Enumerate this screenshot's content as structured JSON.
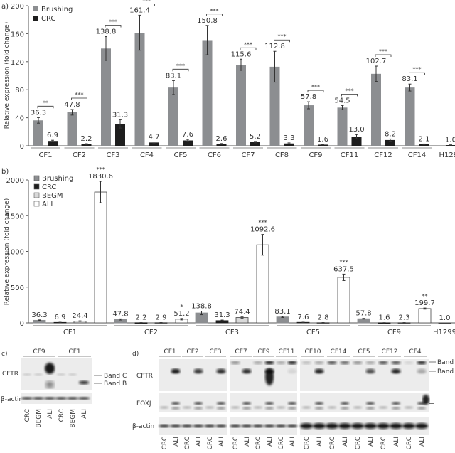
{
  "chart_data": [
    {
      "panel_label": "a)",
      "type": "bar",
      "ylabel": "Relative expression (fold change)",
      "ylim": [
        0,
        200
      ],
      "yticks": [
        0,
        40,
        80,
        120,
        160,
        200
      ],
      "legend_position": "top-left",
      "grid": false,
      "categories": [
        "CF1",
        "CF2",
        "CF3",
        "CF4",
        "CF5",
        "CF6",
        "CF7",
        "CF8",
        "CF9",
        "CF11",
        "CF12",
        "CF14",
        "H1299"
      ],
      "series": [
        {
          "name": "Brushing",
          "color": "#8c8e91",
          "values": [
            36.3,
            47.8,
            138.8,
            161.4,
            83.1,
            150.8,
            115.6,
            112.8,
            57.8,
            54.5,
            102.7,
            83.1,
            null
          ],
          "labels": [
            "36.3",
            "47.8",
            "138.8",
            "161.4",
            "83.1",
            "150.8",
            "115.6",
            "112.8",
            "57.8",
            "54.5",
            "102.7",
            "83.1",
            ""
          ],
          "errors": [
            4,
            4,
            17,
            25,
            10,
            21,
            8,
            22,
            5,
            3,
            11,
            5,
            null
          ]
        },
        {
          "name": "CRC",
          "color": "#1e1e1e",
          "values": [
            6.9,
            2.2,
            31.3,
            4.7,
            7.6,
            2.6,
            5.2,
            3.3,
            1.6,
            13.0,
            8.2,
            2.1,
            1.0
          ],
          "labels": [
            "6.9",
            "2.2",
            "31.3",
            "4.7",
            "7.6",
            "2.6",
            "5.2",
            "3.3",
            "1.6",
            "13.0",
            "8.2",
            "2.1",
            "1.0"
          ],
          "errors": [
            1,
            0.8,
            6,
            0.8,
            1.5,
            0.6,
            1,
            0.8,
            0.5,
            3,
            1.5,
            0.5,
            0.3
          ]
        }
      ],
      "significance": [
        "**",
        "***",
        "***",
        "***",
        "***",
        "***",
        "***",
        "***",
        "***",
        "***",
        "***",
        "***",
        ""
      ]
    },
    {
      "panel_label": "b)",
      "type": "bar",
      "ylabel": "Relative expression (fold change)",
      "ylim": [
        0,
        2000
      ],
      "yticks": [
        0,
        500,
        1000,
        1500,
        2000
      ],
      "legend_position": "top-left",
      "grid": false,
      "categories": [
        "CF1",
        "CF2",
        "CF3",
        "CF5",
        "CF9",
        "H1299"
      ],
      "series": [
        {
          "name": "Brushing",
          "color": "#8c8e91",
          "values": [
            36.3,
            47.8,
            138.8,
            83.1,
            57.8,
            null
          ],
          "labels": [
            "36.3",
            "47.8",
            "138.8",
            "83.1",
            "57.8",
            ""
          ],
          "errors": [
            5,
            8,
            25,
            8,
            5,
            null
          ]
        },
        {
          "name": "CRC",
          "color": "#1e1e1e",
          "values": [
            6.9,
            2.2,
            31.3,
            7.6,
            1.6,
            null
          ],
          "labels": [
            "6.9",
            "2.2",
            "31.3",
            "7.6",
            "1.6",
            ""
          ],
          "errors": [
            2,
            1,
            8,
            2,
            1,
            null
          ]
        },
        {
          "name": "BEGM",
          "color": "#d9d9d9",
          "values": [
            24.4,
            2.9,
            74.4,
            2.8,
            2.3,
            null
          ],
          "labels": [
            "24.4",
            "2.9",
            "74.4",
            "2.8",
            "2.3",
            ""
          ],
          "errors": [
            4,
            1,
            8,
            1,
            1,
            null
          ]
        },
        {
          "name": "ALI",
          "color": "#ffffff",
          "values": [
            1830.6,
            51.2,
            1092.6,
            637.5,
            199.7,
            1.0
          ],
          "labels": [
            "1830.6",
            "51.2",
            "1092.6",
            "637.5",
            "199.7",
            "1.0"
          ],
          "errors": [
            150,
            10,
            145,
            45,
            8,
            null
          ],
          "significance": [
            "***",
            "*",
            "***",
            "***",
            "**",
            ""
          ]
        }
      ]
    }
  ],
  "panel_c": {
    "label": "c)",
    "groups": [
      "CF9",
      "CF1"
    ],
    "rows": [
      "CFTR",
      "β-actin"
    ],
    "bands": [
      "Band C",
      "Band B"
    ],
    "lanes": [
      "CRC",
      "BEGM",
      "ALI",
      "CRC",
      "BEGM",
      "ALI"
    ]
  },
  "panel_d": {
    "label": "d)",
    "groups": [
      "CF1",
      "CF2",
      "CF3",
      "CF7",
      "CF9",
      "CF11",
      "CF10",
      "CF14",
      "CF5",
      "CF12",
      "CF4"
    ],
    "rows": [
      "CFTR",
      "FOXJ",
      "β-actin"
    ],
    "bands": [
      "Band C",
      "Band B"
    ],
    "arrow_icon": "left-arrow-icon",
    "lanes": [
      "CRC",
      "ALI",
      "CRC",
      "ALI",
      "CRC",
      "ALI",
      "CRC",
      "ALI",
      "CRC",
      "ALI",
      "CRC",
      "ALI",
      "CRC",
      "ALI",
      "CRC",
      "ALI",
      "CRC",
      "ALI",
      "CRC",
      "ALI",
      "CRC",
      "ALI"
    ]
  }
}
